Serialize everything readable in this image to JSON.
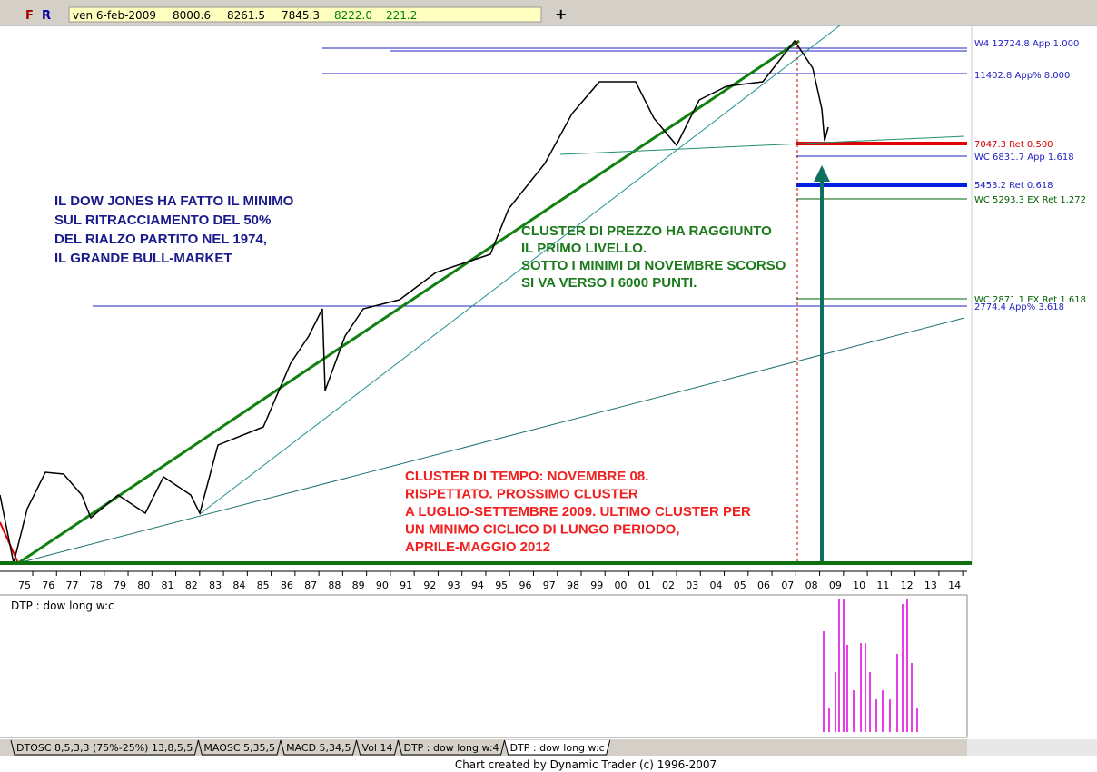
{
  "toolbar": {
    "buttons": [
      "F",
      "R"
    ],
    "date": "ven 6-feb-2009",
    "open": "8000.6",
    "high": "8261.5",
    "low": "7845.3",
    "close": "8222.0",
    "change": "221.2"
  },
  "annotations": {
    "blue": [
      "IL DOW JONES HA FATTO IL MINIMO",
      "SUL RITRACCIAMENTO DEL 50%",
      "DEL RIALZO PARTITO NEL 1974,",
      "IL GRANDE BULL-MARKET"
    ],
    "green": [
      "CLUSTER DI PREZZO HA RAGGIUNTO",
      "IL PRIMO LIVELLO.",
      "SOTTO I MINIMI DI NOVEMBRE SCORSO",
      "SI VA VERSO I 6000 PUNTI."
    ],
    "red": [
      "CLUSTER DI TEMPO: NOVEMBRE 08.",
      "RISPETTATO. PROSSIMO CLUSTER",
      "A LUGLIO-SETTEMBRE 2009. ULTIMO CLUSTER PER",
      "UN MINIMO CICLICO DI LUNGO PERIODO,",
      "APRILE-MAGGIO 2012"
    ]
  },
  "levels": [
    {
      "label": "W4 12724.8 App 1.000",
      "color": "#2020c0"
    },
    {
      "label": "11402.8 App% 8.000",
      "color": "#2020c0"
    },
    {
      "label": "7047.3 Ret 0.500",
      "color": "#d00000"
    },
    {
      "label": "WC 6831.7 App 1.618",
      "color": "#2020c0"
    },
    {
      "label": "5453.2 Ret 0.618",
      "color": "#2020c0"
    },
    {
      "label": "WC 5293.3 EX Ret 1.272",
      "color": "#006000"
    },
    {
      "label": "WC 2871.1 EX Ret 1.618",
      "color": "#006000"
    },
    {
      "label": "2774.4 App% 3.618",
      "color": "#2020c0"
    }
  ],
  "years": [
    "75",
    "76",
    "77",
    "78",
    "79",
    "80",
    "81",
    "82",
    "83",
    "84",
    "85",
    "86",
    "87",
    "88",
    "89",
    "90",
    "91",
    "92",
    "93",
    "94",
    "95",
    "96",
    "97",
    "98",
    "99",
    "00",
    "01",
    "02",
    "03",
    "04",
    "05",
    "06",
    "07",
    "08",
    "09",
    "10",
    "11",
    "12",
    "13",
    "14"
  ],
  "panel_label": "DTP : dow long w:c",
  "tabs": [
    "DTOSC 8,5,3,3 (75%-25%) 13,8,5,5",
    "MAOSC 5,35,5",
    "MACD 5,34,5",
    "Vol 14",
    "DTP : dow long w:4",
    "DTP : dow long w:c"
  ],
  "footer": "Chart created by Dynamic Trader  (c) 1996-2007"
}
